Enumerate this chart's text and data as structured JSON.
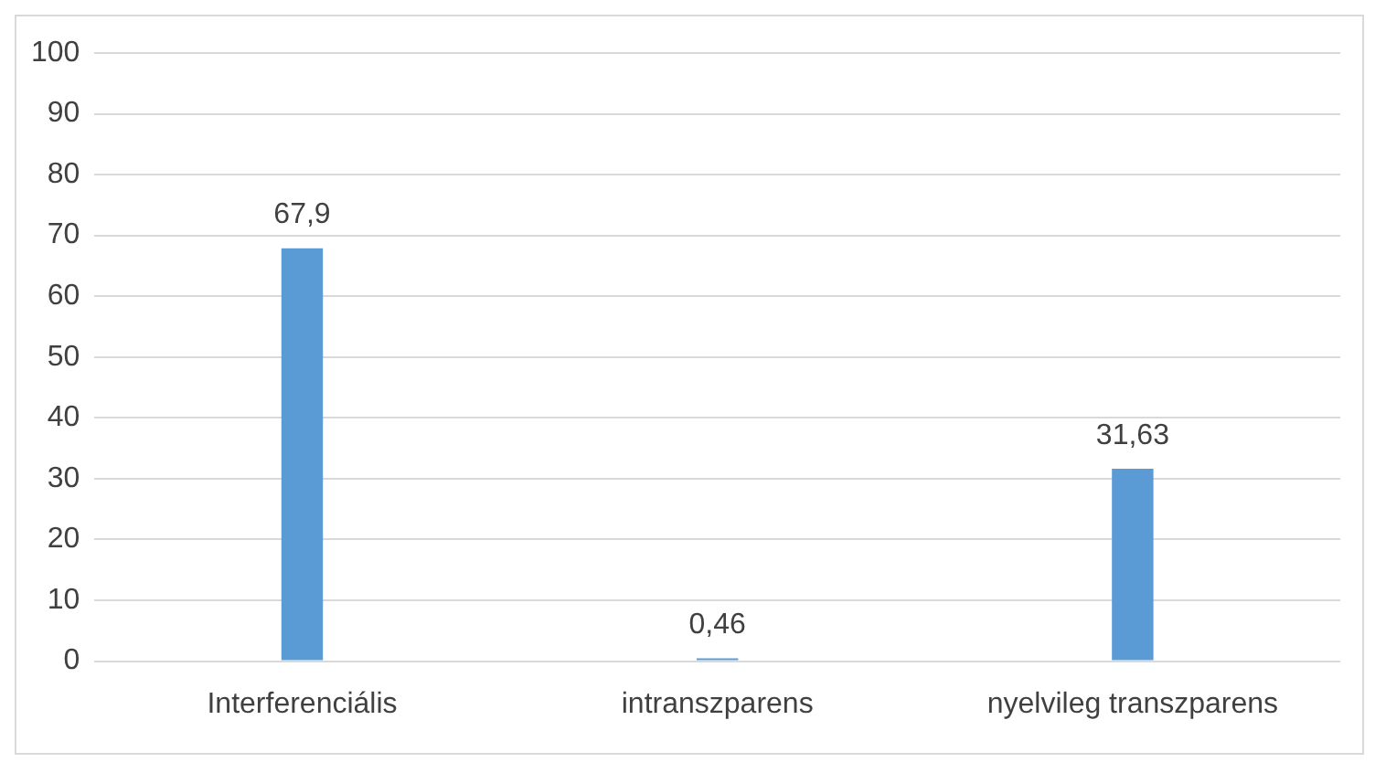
{
  "chart_data": {
    "type": "bar",
    "categories": [
      "Interferenciális",
      "intranszparens",
      "nyelvileg transzparens"
    ],
    "values": [
      67.9,
      0.46,
      31.63
    ],
    "color": "#5b9bd5",
    "value_labels": [
      "67,9",
      "0,46",
      "31,63"
    ],
    "ylim": [
      0,
      100
    ],
    "yticks": [
      0,
      10,
      20,
      30,
      40,
      50,
      60,
      70,
      80,
      90,
      100
    ],
    "grid": "y",
    "legend": false
  }
}
